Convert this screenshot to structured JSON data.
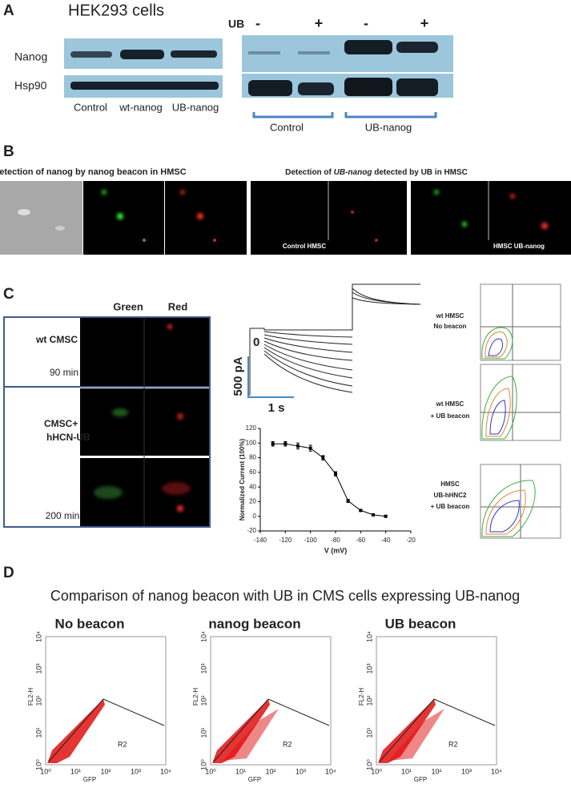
{
  "panel_a": {
    "label": "A",
    "title": "HEK293 cells",
    "treatment_label": "UB",
    "treatment_signs": [
      "-",
      "+",
      "-",
      "+"
    ],
    "rows": [
      "Nanog",
      "Hsp90"
    ],
    "lanes": [
      "Control",
      "wt-nanog",
      "UB-nanog"
    ],
    "groups": [
      "Control",
      "UB-nanog"
    ]
  },
  "panel_b": {
    "label": "B",
    "left_title": "Detection of nanog by nanog beacon in HMSC",
    "right_title_parts": [
      "Detection of ",
      "UB-nanog",
      " detected by UB in HMSC"
    ],
    "image_labels": [
      "Control HMSC",
      "HMSC UB-nanog"
    ]
  },
  "panel_c": {
    "label": "C",
    "channels": [
      "Green",
      "Red"
    ],
    "row_labels": [
      "wt CMSC",
      "CMSC+",
      "hHCN-UB"
    ],
    "times": [
      "90 min",
      "200 min"
    ],
    "zero_label": "0",
    "scale_current": "500 pA",
    "scale_time": "1 s",
    "flow_labels": [
      [
        "wt HMSC",
        "No beacon"
      ],
      [
        "wt HMSC",
        "+ UB beacon"
      ],
      [
        "HMSC",
        "UB-hHNC2",
        "+ UB beacon"
      ]
    ]
  },
  "chart_data": {
    "type": "line",
    "x_label": "V (mV)",
    "y_label": "Normalized Current (100%)",
    "x": [
      -130,
      -120,
      -110,
      -100,
      -90,
      -80,
      -70,
      -60,
      -50,
      -40
    ],
    "values": [
      99,
      99,
      96,
      93,
      80,
      58,
      21,
      8,
      2,
      0
    ],
    "errors": [
      3,
      3,
      4,
      4,
      3,
      3,
      2,
      1,
      1,
      1
    ],
    "xlim": [
      -140,
      -20
    ],
    "ylim": [
      -20,
      120
    ],
    "xticks": [
      -140,
      -120,
      -100,
      -80,
      -60,
      -40,
      -20
    ],
    "yticks": [
      -20,
      0,
      20,
      40,
      60,
      80,
      100,
      120
    ],
    "color": "#000000"
  },
  "panel_d": {
    "label": "D",
    "title": "Comparison of nanog beacon with UB in CMS cells expressing UB-nanog",
    "plots": [
      {
        "title": "No beacon"
      },
      {
        "title": "nanog beacon"
      },
      {
        "title": "UB beacon"
      }
    ],
    "ticks": [
      "10⁰",
      "10¹",
      "10²",
      "10³",
      "10⁴"
    ],
    "x_label": "GFP",
    "y_label": "FL2-H",
    "gate_label": "R2"
  }
}
